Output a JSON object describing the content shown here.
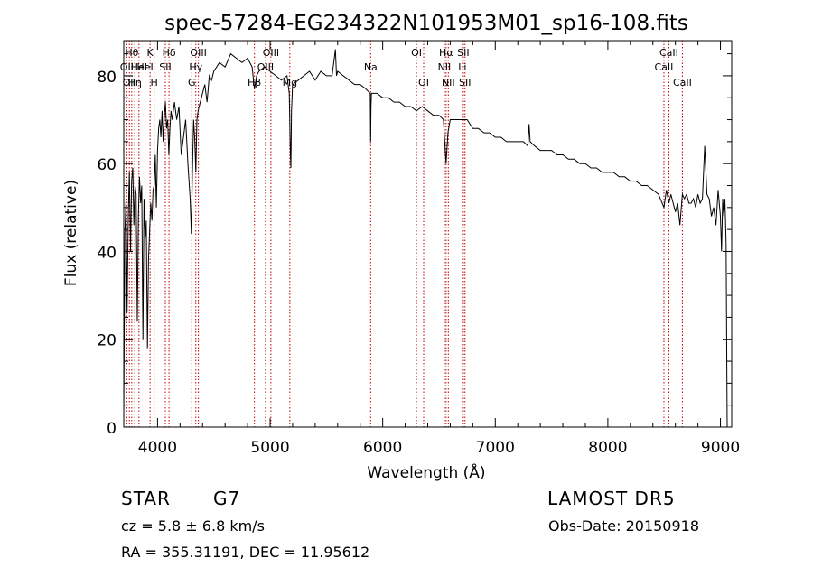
{
  "chart_data": {
    "type": "line",
    "title": "spec-57284-EG234322N101953M01_sp16-108.fits",
    "xlabel": "Wavelength (Å)",
    "ylabel": "Flux (relative)",
    "xlim": [
      3700,
      9100
    ],
    "ylim": [
      0,
      88
    ],
    "x_ticks": [
      4000,
      5000,
      6000,
      7000,
      8000,
      9000
    ],
    "y_ticks": [
      0,
      20,
      40,
      60,
      80
    ],
    "grid": false,
    "series": [
      {
        "x": [
          3700,
          3710,
          3720,
          3730,
          3740,
          3750,
          3760,
          3770,
          3780,
          3790,
          3800,
          3810,
          3820,
          3830,
          3840,
          3850,
          3860,
          3870,
          3880,
          3890,
          3900,
          3910,
          3920,
          3930,
          3940,
          3950,
          3960,
          3970,
          3980,
          3990,
          4000,
          4010,
          4020,
          4030,
          4040,
          4050,
          4060,
          4070,
          4080,
          4090,
          4100,
          4110,
          4120,
          4130,
          4150,
          4170,
          4190,
          4210,
          4230,
          4250,
          4270,
          4290,
          4300,
          4310,
          4320,
          4330,
          4340,
          4350,
          4360,
          4380,
          4400,
          4420,
          4440,
          4460,
          4480,
          4500,
          4550,
          4600,
          4650,
          4700,
          4750,
          4800,
          4840,
          4861,
          4880,
          4900,
          4950,
          5000,
          5050,
          5100,
          5150,
          5170,
          5180,
          5184,
          5190,
          5200,
          5250,
          5300,
          5350,
          5400,
          5450,
          5500,
          5550,
          5580,
          5590,
          5600,
          5650,
          5700,
          5750,
          5800,
          5850,
          5890,
          5893,
          5896,
          5900,
          5950,
          6000,
          6050,
          6100,
          6150,
          6200,
          6250,
          6300,
          6350,
          6400,
          6450,
          6500,
          6540,
          6563,
          6580,
          6600,
          6650,
          6700,
          6750,
          6800,
          6850,
          6900,
          6950,
          7000,
          7050,
          7100,
          7150,
          7200,
          7250,
          7290,
          7300,
          7310,
          7350,
          7400,
          7450,
          7500,
          7550,
          7600,
          7650,
          7700,
          7750,
          7800,
          7850,
          7900,
          7950,
          8000,
          8050,
          8100,
          8150,
          8200,
          8250,
          8300,
          8350,
          8400,
          8450,
          8498,
          8520,
          8542,
          8560,
          8600,
          8620,
          8640,
          8662,
          8680,
          8700,
          8720,
          8740,
          8760,
          8780,
          8800,
          8820,
          8840,
          8860,
          8880,
          8900,
          8920,
          8940,
          8960,
          8980,
          9000,
          9010,
          9020,
          9030,
          9040,
          9050,
          9060
        ],
        "y": [
          3,
          44,
          52,
          26,
          48,
          58,
          40,
          56,
          59,
          46,
          55,
          53,
          24,
          48,
          57,
          51,
          55,
          20,
          52,
          43,
          47,
          18,
          38,
          45,
          51,
          47,
          54,
          55,
          62,
          50,
          63,
          68,
          70,
          66,
          72,
          65,
          71,
          74,
          68,
          70,
          62,
          68,
          72,
          70,
          74,
          70,
          73,
          62,
          66,
          70,
          60,
          52,
          44,
          58,
          70,
          66,
          58,
          70,
          72,
          74,
          76,
          78,
          74,
          80,
          79,
          81,
          83,
          82,
          85,
          84,
          83,
          84,
          82,
          77,
          80,
          81,
          82,
          81,
          80,
          79,
          80,
          76,
          62,
          59,
          72,
          78,
          79,
          80,
          81,
          79,
          81,
          80,
          80,
          86,
          80,
          81,
          80,
          79,
          78,
          78,
          77,
          76,
          65,
          73,
          76,
          76,
          75,
          75,
          74,
          74,
          73,
          73,
          72,
          73,
          72,
          71,
          71,
          70,
          60,
          67,
          70,
          70,
          70,
          70,
          68,
          68,
          67,
          67,
          66,
          66,
          65,
          65,
          65,
          65,
          64,
          69,
          65,
          64,
          63,
          63,
          63,
          62,
          62,
          61,
          61,
          60,
          60,
          59,
          59,
          58,
          58,
          58,
          57,
          57,
          56,
          56,
          55,
          55,
          54,
          53,
          50,
          54,
          51,
          53,
          49,
          51,
          46,
          53,
          52,
          53,
          51,
          51,
          52,
          50,
          53,
          51,
          52,
          64,
          53,
          52,
          48,
          50,
          46,
          54,
          48,
          40,
          52,
          48,
          52,
          42,
          0
        ]
      }
    ],
    "lines": [
      {
        "x": 3727,
        "label": "OII",
        "row": 2
      },
      {
        "x": 3750,
        "label": "OII",
        "row": 3
      },
      {
        "x": 3771,
        "label": "Hθ",
        "row": 1
      },
      {
        "x": 3798,
        "label": "Hη",
        "row": 3
      },
      {
        "x": 3835,
        "label": "HeI",
        "row": 2
      },
      {
        "x": 3889,
        "label": "HeI",
        "row": 2
      },
      {
        "x": 3934,
        "label": "K",
        "row": 1
      },
      {
        "x": 3970,
        "label": "H",
        "row": 3
      },
      {
        "x": 4069,
        "label": "SII",
        "row": 2
      },
      {
        "x": 4102,
        "label": "Hδ",
        "row": 1
      },
      {
        "x": 4304,
        "label": "G",
        "row": 3
      },
      {
        "x": 4340,
        "label": "Hγ",
        "row": 2
      },
      {
        "x": 4363,
        "label": "OIII",
        "row": 1
      },
      {
        "x": 4861,
        "label": "Hβ",
        "row": 3
      },
      {
        "x": 4959,
        "label": "OIII",
        "row": 2
      },
      {
        "x": 5007,
        "label": "OIII",
        "row": 1
      },
      {
        "x": 5175,
        "label": "Mg",
        "row": 3
      },
      {
        "x": 5893,
        "label": "Na",
        "row": 2
      },
      {
        "x": 6300,
        "label": "OI",
        "row": 1
      },
      {
        "x": 6364,
        "label": "OI",
        "row": 3
      },
      {
        "x": 6548,
        "label": "NII",
        "row": 2
      },
      {
        "x": 6563,
        "label": "Hα",
        "row": 1
      },
      {
        "x": 6583,
        "label": "NII",
        "row": 3
      },
      {
        "x": 6708,
        "label": "Li",
        "row": 2
      },
      {
        "x": 6716,
        "label": "SII",
        "row": 1
      },
      {
        "x": 6731,
        "label": "SII",
        "row": 3
      },
      {
        "x": 8498,
        "label": "CaII",
        "row": 2
      },
      {
        "x": 8542,
        "label": "CaII",
        "row": 1
      },
      {
        "x": 8662,
        "label": "CaII",
        "row": 3
      }
    ]
  },
  "footer": {
    "class": "STAR",
    "subclass": "G7",
    "survey": "LAMOST DR5",
    "cz": "cz = 5.8 ± 6.8 km/s",
    "obs_date": "Obs-Date: 20150918",
    "radec": "RA = 355.31191, DEC =  11.95612"
  },
  "colors": {
    "spectrum": "#000000",
    "line_markers": "#c00000",
    "axes": "#000000"
  }
}
